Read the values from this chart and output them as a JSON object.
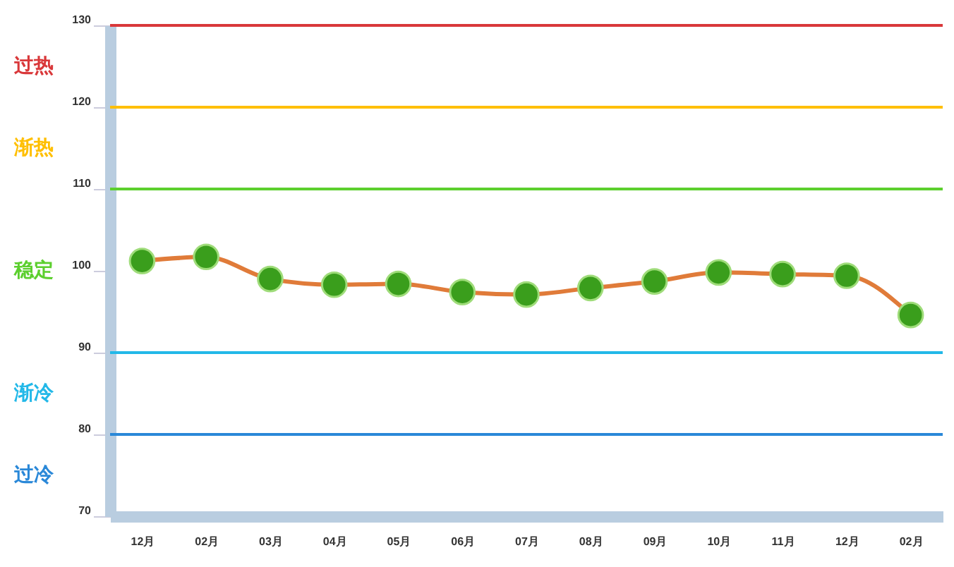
{
  "chart_data": {
    "type": "line",
    "categories": [
      "12月",
      "02月",
      "03月",
      "04月",
      "05月",
      "06月",
      "07月",
      "08月",
      "09月",
      "10月",
      "11月",
      "12月",
      "02月"
    ],
    "series": [
      {
        "color": "#e07b39",
        "values": [
          101.2,
          101.7,
          99.0,
          98.3,
          98.4,
          97.4,
          97.1,
          97.9,
          98.7,
          99.8,
          99.6,
          99.4,
          94.6
        ]
      }
    ],
    "marker": "circle",
    "ylim": [
      70,
      130
    ],
    "yticks": [
      70,
      80,
      90,
      100,
      110,
      120,
      130
    ],
    "ref_lines": [
      {
        "axis": "y",
        "value": 130,
        "label": "过热",
        "color": "#d9383a"
      },
      {
        "axis": "y",
        "value": 120,
        "label": "渐热",
        "color": "#ffbf00"
      },
      {
        "axis": "y",
        "value": 110,
        "label": "稳定",
        "color": "#5ccf2e"
      },
      {
        "axis": "y",
        "value": 90,
        "label": "渐冷",
        "color": "#22b8e8"
      },
      {
        "axis": "y",
        "value": 80,
        "label": "过冷",
        "color": "#2a88d8"
      }
    ]
  }
}
